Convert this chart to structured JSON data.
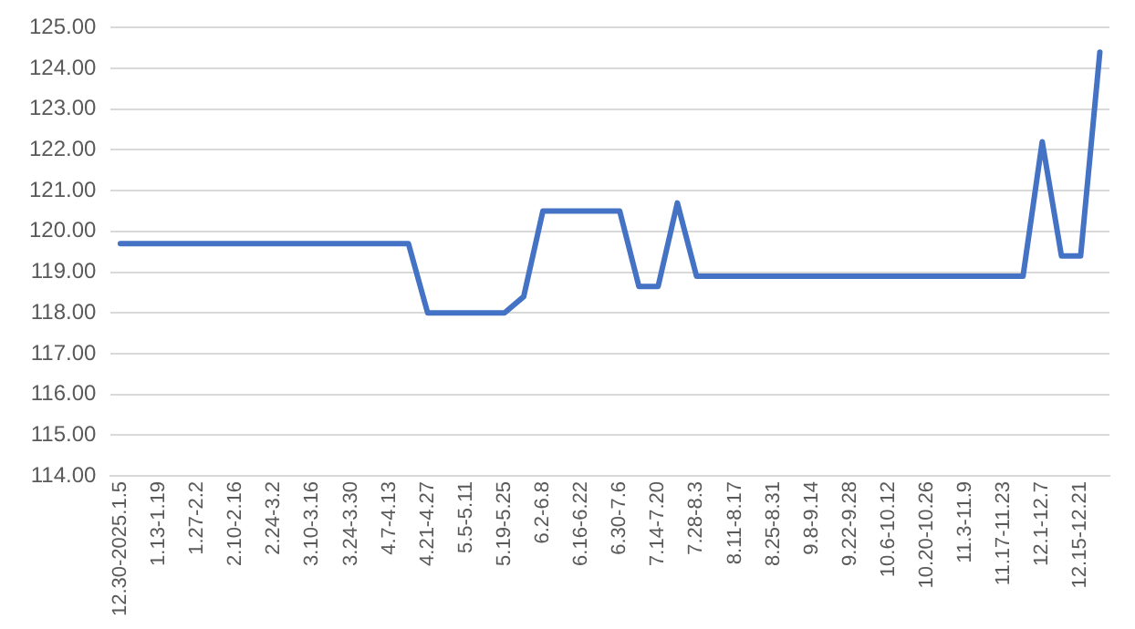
{
  "chart_data": {
    "type": "line",
    "categories": [
      "12.30-2025.1.5",
      null,
      "1.13-1.19",
      null,
      "1.27-2.2",
      null,
      "2.10-2.16",
      null,
      "2.24-3.2",
      null,
      "3.10-3.16",
      null,
      "3.24-3.30",
      null,
      "4.7-4.13",
      null,
      "4.21-4.27",
      null,
      "5.5-5.11",
      null,
      "5.19-5.25",
      null,
      "6.2-6.8",
      null,
      "6.16-6.22",
      null,
      "6.30-7.6",
      null,
      "7.14-7.20",
      null,
      "7.28-8.3",
      null,
      "8.11-8.17",
      null,
      "8.25-8.31",
      null,
      "9.8-9.14",
      null,
      "9.22-9.28",
      null,
      "10.6-10.12",
      null,
      "10.20-10.26",
      null,
      "11.3-11.9",
      null,
      "11.17-11.23",
      null,
      "12.1-12.7",
      null,
      "12.15-12.21",
      null
    ],
    "series": [
      {
        "color": "#4472c4",
        "values": [
          119.7,
          119.7,
          119.7,
          119.7,
          119.7,
          119.7,
          119.7,
          119.7,
          119.7,
          119.7,
          119.7,
          119.7,
          119.7,
          119.7,
          119.7,
          119.7,
          118.0,
          118.0,
          118.0,
          118.0,
          118.0,
          118.4,
          120.5,
          120.5,
          120.5,
          120.5,
          120.5,
          118.65,
          118.65,
          120.7,
          118.9,
          118.9,
          118.9,
          118.9,
          118.9,
          118.9,
          118.9,
          118.9,
          118.9,
          118.9,
          118.9,
          118.9,
          118.9,
          118.9,
          118.9,
          118.9,
          118.9,
          118.9,
          122.2,
          119.4,
          119.4,
          124.4
        ]
      }
    ],
    "ylim": [
      114,
      125
    ],
    "yticks": [
      {
        "value": 114,
        "label": "114.00"
      },
      {
        "value": 115,
        "label": "115.00"
      },
      {
        "value": 116,
        "label": "116.00"
      },
      {
        "value": 117,
        "label": "117.00"
      },
      {
        "value": 118,
        "label": "118.00"
      },
      {
        "value": 119,
        "label": "119.00"
      },
      {
        "value": 120,
        "label": "120.00"
      },
      {
        "value": 121,
        "label": "121.00"
      },
      {
        "value": 122,
        "label": "122.00"
      },
      {
        "value": 123,
        "label": "123.00"
      },
      {
        "value": 124,
        "label": "124.00"
      },
      {
        "value": 125,
        "label": "125.00"
      }
    ],
    "grid": "y",
    "legend": false,
    "marker": "none",
    "line_style": "solid"
  }
}
